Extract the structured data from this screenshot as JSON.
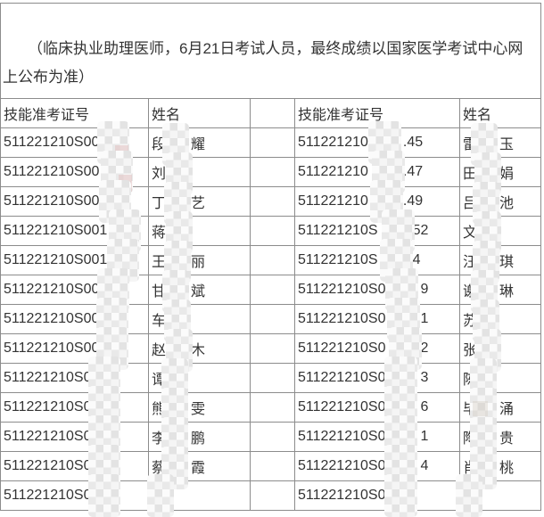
{
  "note": {
    "text": "（临床执业助理医师，6月21日考试人员，最终成绩以国家医学考试中心网上公布为准）"
  },
  "table": {
    "headers": [
      "技能准考证号",
      "姓名",
      "",
      "技能准考证号",
      "姓名"
    ],
    "rows": [
      {
        "lid_prefix": "511221210S00",
        "lid_suffix": "",
        "lname_prefix": "段",
        "lname_suffix": "耀",
        "rid_prefix": "511221210",
        "rid_suffix": ".45",
        "rname_prefix": "雷",
        "rname_suffix": "玉"
      },
      {
        "lid_prefix": "511221210S00",
        "lid_suffix": "",
        "lname_prefix": "刘",
        "lname_suffix": "",
        "rid_prefix": "511221210",
        "rid_suffix": ".47",
        "rname_prefix": "田",
        "rname_suffix": "娟"
      },
      {
        "lid_prefix": "511221210S00",
        "lid_suffix": "",
        "lname_prefix": "丁",
        "lname_suffix": "艺",
        "rid_prefix": "511221210",
        "rid_suffix": ".49",
        "rname_prefix": "吕",
        "rname_suffix": "池"
      },
      {
        "lid_prefix": "511221210S001",
        "lid_suffix": "",
        "lname_prefix": "蒋",
        "lname_suffix": "",
        "rid_prefix": "511221210S",
        "rid_suffix": "52",
        "rname_prefix": "文",
        "rname_suffix": ""
      },
      {
        "lid_prefix": "511221210S001",
        "lid_suffix": "",
        "lname_prefix": "王",
        "lname_suffix": "丽",
        "rid_prefix": "511221210S",
        "rid_suffix": "4",
        "rname_prefix": "汪",
        "rname_suffix": "琪"
      },
      {
        "lid_prefix": "511221210S00",
        "lid_suffix": "",
        "lname_prefix": "甘",
        "lname_suffix": "斌",
        "rid_prefix": "511221210S0",
        "rid_suffix": "9",
        "rname_prefix": "谢",
        "rname_suffix": "琳"
      },
      {
        "lid_prefix": "511221210S00",
        "lid_suffix": "",
        "lname_prefix": "车",
        "lname_suffix": "",
        "rid_prefix": "511221210S0",
        "rid_suffix": "1",
        "rname_prefix": "苏",
        "rname_suffix": ""
      },
      {
        "lid_prefix": "511221210S00",
        "lid_suffix": "",
        "lname_prefix": "赵",
        "lname_suffix": "木",
        "rid_prefix": "511221210S0",
        "rid_suffix": "2",
        "rname_prefix": "张",
        "rname_suffix": ""
      },
      {
        "lid_prefix": "511221210S0",
        "lid_suffix": "",
        "lname_prefix": "谭",
        "lname_suffix": "",
        "rid_prefix": "511221210S0",
        "rid_suffix": "3",
        "rname_prefix": "陈",
        "rname_suffix": ""
      },
      {
        "lid_prefix": "511221210S0",
        "lid_suffix": "",
        "lname_prefix": "熊",
        "lname_suffix": "雯",
        "rid_prefix": "511221210S0",
        "rid_suffix": "6",
        "rname_prefix": "毕",
        "rname_suffix": "涌"
      },
      {
        "lid_prefix": "511221210S0",
        "lid_suffix": "",
        "lname_prefix": "李",
        "lname_suffix": "鹏",
        "rid_prefix": "511221210S0",
        "rid_suffix": "1",
        "rname_prefix": "陶",
        "rname_suffix": "贵"
      },
      {
        "lid_prefix": "511221210S0",
        "lid_suffix": "",
        "lname_prefix": "蔡",
        "lname_suffix": "霞",
        "rid_prefix": "511221210S0",
        "rid_suffix": "4",
        "rname_prefix": "肖",
        "rname_suffix": "桃"
      },
      {
        "lid_prefix": "511221210S0",
        "lid_suffix": "",
        "lname_prefix": "",
        "lname_suffix": "",
        "rid_prefix": "511221210S0",
        "rid_suffix": "",
        "rname_prefix": "",
        "rname_suffix": ""
      }
    ]
  },
  "colors": {
    "text": "#333333",
    "border": "#8c8c8c",
    "background": "#ffffff",
    "mosaic_base": "#f1f1f1"
  }
}
